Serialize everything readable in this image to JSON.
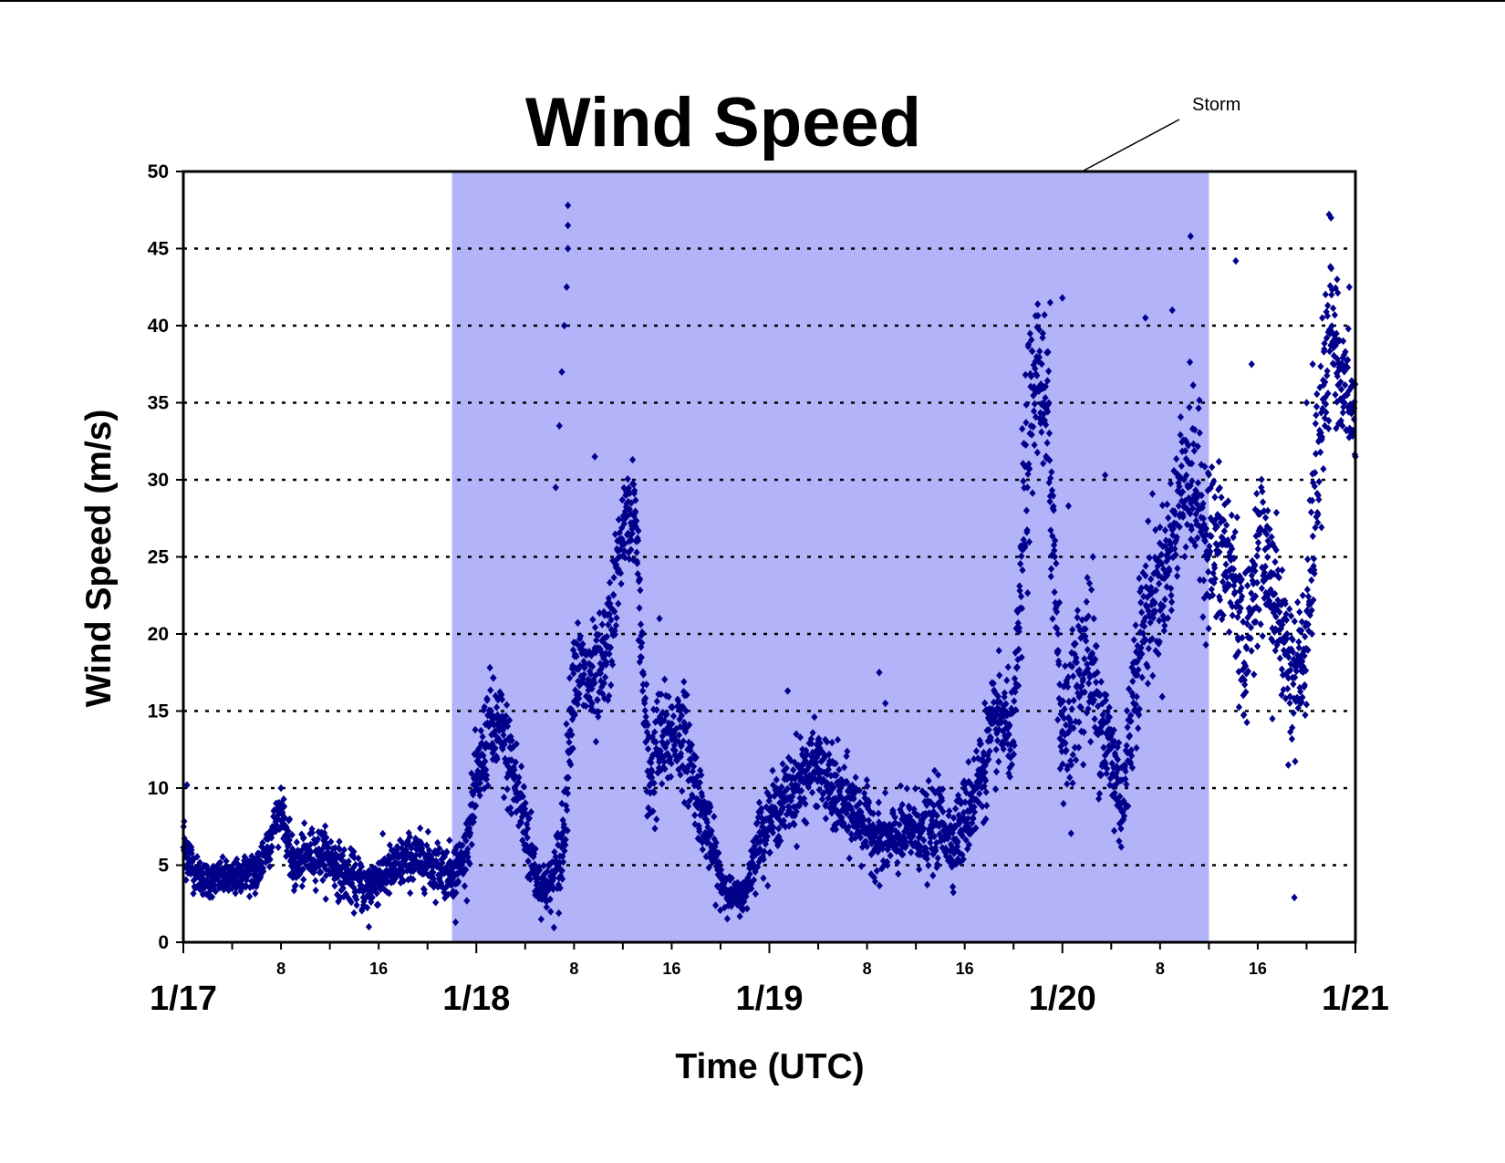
{
  "chart_data": {
    "type": "scatter",
    "title": "Wind Speed",
    "xlabel": "Time (UTC)",
    "ylabel": "Wind Speed (m/s)",
    "x_unit": "hours",
    "xlim": [
      0,
      96
    ],
    "ylim": [
      0,
      50
    ],
    "y_ticks": [
      "0",
      "5",
      "10",
      "15",
      "20",
      "25",
      "30",
      "35",
      "40",
      "45",
      "50"
    ],
    "grid": "horizontal dotted",
    "x_major_labels": [
      {
        "x": 0,
        "label": "1/17"
      },
      {
        "x": 24,
        "label": "1/18"
      },
      {
        "x": 48,
        "label": "1/19"
      },
      {
        "x": 72,
        "label": "1/20"
      },
      {
        "x": 96,
        "label": "1/21"
      }
    ],
    "x_minor_labels": [
      {
        "x": 8,
        "label": "8"
      },
      {
        "x": 16,
        "label": "16"
      },
      {
        "x": 32,
        "label": "8"
      },
      {
        "x": 40,
        "label": "16"
      },
      {
        "x": 56,
        "label": "8"
      },
      {
        "x": 64,
        "label": "16"
      },
      {
        "x": 80,
        "label": "8"
      },
      {
        "x": 88,
        "label": "16"
      }
    ],
    "shaded_region": {
      "label": "Storm",
      "x_start": 22,
      "x_end": 84,
      "color": "#b3b3fa"
    },
    "annotation": {
      "text": "Storm",
      "points_to_x": 74
    },
    "marker_color": "#00008b",
    "marker": "diamond",
    "series": [
      {
        "values_hourly": [
          [
            0,
            6.5
          ],
          [
            1,
            4.5
          ],
          [
            2,
            4.0
          ],
          [
            3,
            4.2
          ],
          [
            4,
            4.0
          ],
          [
            5,
            4.5
          ],
          [
            6,
            4.5
          ],
          [
            7,
            6.5
          ],
          [
            8,
            8.8
          ],
          [
            9,
            4.8
          ],
          [
            10,
            5.5
          ],
          [
            11,
            5.8
          ],
          [
            12,
            5.5
          ],
          [
            13,
            4.5
          ],
          [
            14,
            4.0
          ],
          [
            15,
            3.5
          ],
          [
            16,
            4.2
          ],
          [
            17,
            4.6
          ],
          [
            18,
            5.2
          ],
          [
            19,
            5.5
          ],
          [
            20,
            5.2
          ],
          [
            21,
            4.8
          ],
          [
            22,
            4.6
          ],
          [
            23,
            5.5
          ],
          [
            24,
            10.0
          ],
          [
            25,
            14.0
          ],
          [
            26,
            13.5
          ],
          [
            27,
            11.0
          ],
          [
            28,
            7.5
          ],
          [
            29,
            4.0
          ],
          [
            30,
            3.5
          ],
          [
            31,
            5.5
          ],
          [
            32,
            18.0
          ],
          [
            33,
            17.0
          ],
          [
            34,
            16.5
          ],
          [
            35,
            20.0
          ],
          [
            36,
            27.0
          ],
          [
            37,
            28.0
          ],
          [
            38,
            11.0
          ],
          [
            39,
            12.5
          ],
          [
            40,
            13.5
          ],
          [
            41,
            13.5
          ],
          [
            42,
            10.0
          ],
          [
            43,
            7.0
          ],
          [
            44,
            4.0
          ],
          [
            45,
            3.0
          ],
          [
            46,
            3.0
          ],
          [
            47,
            6.5
          ],
          [
            48,
            8.0
          ],
          [
            49,
            9.0
          ],
          [
            50,
            10.0
          ],
          [
            51,
            11.0
          ],
          [
            52,
            11.5
          ],
          [
            53,
            10.0
          ],
          [
            54,
            9.0
          ],
          [
            55,
            8.5
          ],
          [
            56,
            7.5
          ],
          [
            57,
            6.5
          ],
          [
            58,
            6.5
          ],
          [
            59,
            7.0
          ],
          [
            60,
            7.5
          ],
          [
            61,
            7.0
          ],
          [
            62,
            8.0
          ],
          [
            63,
            6.5
          ],
          [
            64,
            8.0
          ],
          [
            65,
            10.0
          ],
          [
            66,
            13.0
          ],
          [
            67,
            14.5
          ],
          [
            68,
            13.0
          ],
          [
            69,
            30.0
          ],
          [
            70,
            38.0
          ],
          [
            71,
            31.0
          ],
          [
            72,
            13.0
          ],
          [
            73,
            16.0
          ],
          [
            74,
            19.0
          ],
          [
            75,
            15.0
          ],
          [
            76,
            12.0
          ],
          [
            77,
            9.0
          ],
          [
            78,
            18.0
          ],
          [
            79,
            22.0
          ],
          [
            80,
            23.0
          ],
          [
            81,
            26.0
          ],
          [
            82,
            31.0
          ],
          [
            83,
            29.0
          ],
          [
            84,
            26.0
          ],
          [
            85,
            25.0
          ],
          [
            86,
            24.0
          ],
          [
            87,
            18.0
          ],
          [
            88,
            26.0
          ],
          [
            89,
            24.0
          ],
          [
            90,
            20.0
          ],
          [
            91,
            17.0
          ],
          [
            92,
            19.0
          ],
          [
            93,
            32.0
          ],
          [
            94,
            40.0
          ],
          [
            95,
            36.0
          ],
          [
            96,
            34.0
          ]
        ],
        "spread_hourly": [
          2.0,
          1.0,
          1.0,
          1.0,
          1.0,
          1.0,
          1.5,
          1.5,
          1.0,
          1.5,
          1.5,
          1.5,
          1.5,
          1.5,
          1.5,
          1.5,
          1.5,
          1.5,
          1.5,
          1.5,
          1.5,
          1.5,
          1.5,
          1.5,
          2.5,
          3.0,
          3.0,
          3.0,
          3.0,
          1.5,
          1.5,
          3.0,
          3.0,
          3.0,
          3.5,
          3.5,
          2.5,
          2.5,
          4.0,
          3.5,
          3.0,
          3.0,
          2.5,
          2.0,
          1.5,
          0.8,
          1.0,
          2.0,
          2.0,
          2.0,
          2.5,
          2.5,
          2.0,
          2.5,
          2.5,
          2.5,
          2.0,
          2.0,
          2.0,
          2.0,
          2.0,
          2.5,
          2.5,
          2.0,
          2.5,
          3.0,
          3.0,
          3.0,
          2.5,
          7.0,
          4.0,
          7.0,
          3.0,
          5.0,
          5.0,
          4.0,
          4.0,
          3.5,
          4.0,
          4.5,
          4.0,
          4.5,
          5.0,
          5.0,
          5.0,
          5.0,
          5.0,
          4.0,
          4.0,
          4.0,
          4.0,
          4.0,
          4.0,
          6.0,
          4.0,
          3.0,
          3.0
        ],
        "highlight_points": [
          [
            0.3,
            10.2
          ],
          [
            8.0,
            10.0
          ],
          [
            22.3,
            1.3
          ],
          [
            15.2,
            1.0
          ],
          [
            31.0,
            9.0
          ],
          [
            30.5,
            29.5
          ],
          [
            30.8,
            33.5
          ],
          [
            31.0,
            37.0
          ],
          [
            31.2,
            40.0
          ],
          [
            31.4,
            42.5
          ],
          [
            31.5,
            45.0
          ],
          [
            31.5,
            46.5
          ],
          [
            31.5,
            47.8
          ],
          [
            33.7,
            31.5
          ],
          [
            36.8,
            31.3
          ],
          [
            39.0,
            21.0
          ],
          [
            49.5,
            16.3
          ],
          [
            57.0,
            17.5
          ],
          [
            57.5,
            15.5
          ],
          [
            71.0,
            41.5
          ],
          [
            72.0,
            41.8
          ],
          [
            72.5,
            28.3
          ],
          [
            74.5,
            25.0
          ],
          [
            75.5,
            30.3
          ],
          [
            78.8,
            40.5
          ],
          [
            81.0,
            41.0
          ],
          [
            82.5,
            45.8
          ],
          [
            86.2,
            44.2
          ],
          [
            87.5,
            37.5
          ],
          [
            89.2,
            14.5
          ],
          [
            90.5,
            11.5
          ],
          [
            91.0,
            2.9
          ],
          [
            91.5,
            15.5
          ],
          [
            92.5,
            37.5
          ],
          [
            92.0,
            35.0
          ],
          [
            94.0,
            47.0
          ],
          [
            94.5,
            43.0
          ],
          [
            95.5,
            42.5
          ],
          [
            96.0,
            31.5
          ],
          [
            93.5,
            33.5
          ]
        ],
        "points_per_hour": 45
      }
    ]
  }
}
